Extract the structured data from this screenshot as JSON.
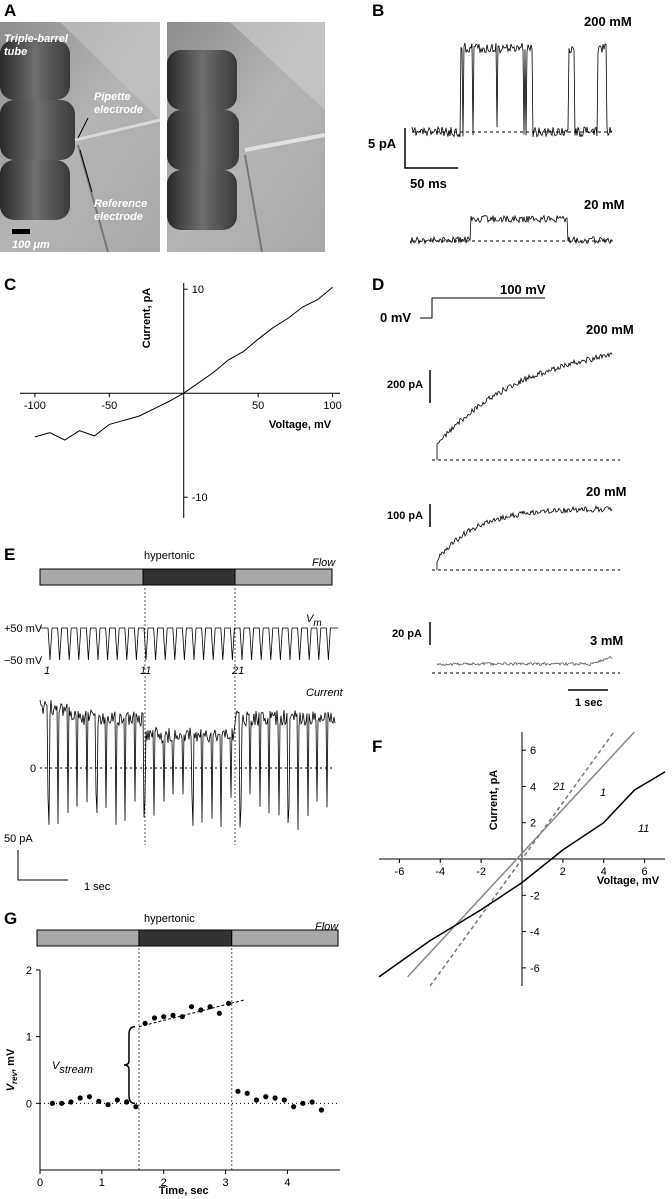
{
  "panels": {
    "labels": [
      "A",
      "B",
      "C",
      "D",
      "E",
      "F",
      "G"
    ],
    "A": {
      "tube": [
        "Triple-barrel",
        "tube"
      ],
      "pipette": [
        "Pipette",
        "electrode"
      ],
      "reference": [
        "Reference",
        "electrode"
      ],
      "scale": "100 μm"
    },
    "B": {
      "high": "200 mM",
      "low": "20 mM",
      "scale_y": "5 pA",
      "scale_x": "50 ms"
    },
    "D": {
      "step_low": "0 mV",
      "step_high": "100 mV",
      "traces": [
        {
          "conc": "200 mM",
          "scale": "200 pA"
        },
        {
          "conc": "20 mM",
          "scale": "100 pA"
        },
        {
          "conc": "3 mM",
          "scale": "20 pA"
        }
      ],
      "scale_x": "1 sec"
    },
    "E": {
      "title": "hypertonic",
      "flow": "Flow",
      "vm": "V",
      "vm_sub": "m",
      "vplus": "+50 mV",
      "vminus": "−50 mV",
      "pulses": [
        "1",
        "11",
        "21"
      ],
      "current": "Current",
      "zero": "0",
      "scale_y": "50 pA",
      "scale_x": "1 sec"
    }
  },
  "chart_data": [
    {
      "type": "line",
      "xlabel": "Voltage, mV",
      "ylabel": "Current, pA",
      "xlim": [
        -110,
        105
      ],
      "ylim": [
        -12,
        10.6
      ],
      "xticks": [
        -100,
        -50,
        50,
        100
      ],
      "yticks": [
        10,
        -10
      ],
      "x": [
        -100,
        -90,
        -80,
        -70,
        -60,
        -50,
        -40,
        -30,
        -20,
        -10,
        0,
        10,
        20,
        30,
        40,
        50,
        60,
        70,
        80,
        90,
        100
      ],
      "y": [
        -4.2,
        -3.8,
        -4.5,
        -3.6,
        -4.1,
        -3.0,
        -2.6,
        -2.2,
        -1.5,
        -0.8,
        0,
        1.0,
        2.0,
        3.2,
        4.0,
        5.2,
        6.3,
        7.2,
        8.3,
        9.0,
        10.2
      ],
      "color": "#000000"
    },
    {
      "type": "line",
      "xlabel": "Voltage, mV",
      "ylabel": "Current, pA",
      "xlim": [
        -7,
        7
      ],
      "ylim": [
        -7,
        7
      ],
      "xticks": [
        -6,
        -4,
        -2,
        2,
        4,
        6
      ],
      "yticks": [
        6,
        4,
        2,
        -2,
        -4,
        -6
      ],
      "series": [
        {
          "name": "21",
          "color": "#777777",
          "dash": true,
          "x": [
            -4.5,
            4.5
          ],
          "y": [
            -7,
            7
          ]
        },
        {
          "name": "1",
          "color": "#888888",
          "dash": false,
          "x": [
            -5.6,
            5.5
          ],
          "y": [
            -6.5,
            7
          ]
        },
        {
          "name": "11",
          "color": "#000000",
          "dash": false,
          "x": [
            -7,
            -4.5,
            -2,
            0,
            2,
            4,
            5.5,
            7
          ],
          "y": [
            -6.5,
            -4.5,
            -2.8,
            -1.3,
            0.5,
            2.0,
            3.8,
            4.8
          ]
        }
      ]
    },
    {
      "type": "scatter",
      "title": "hypertonic",
      "flow": "Flow",
      "xlabel": "Time, sec",
      "ylabel": [
        "V",
        "rev",
        ", mV"
      ],
      "annotation": [
        "V",
        "stream"
      ],
      "xlim": [
        0,
        4.85
      ],
      "ylim": [
        -1,
        2
      ],
      "xticks": [
        0,
        1,
        2,
        3,
        4
      ],
      "yticks": [
        0,
        1,
        2
      ],
      "stimulus": [
        1.6,
        3.1
      ],
      "x": [
        0.2,
        0.35,
        0.5,
        0.65,
        0.8,
        0.95,
        1.1,
        1.25,
        1.4,
        1.55,
        1.7,
        1.85,
        2.0,
        2.15,
        2.3,
        2.45,
        2.6,
        2.75,
        2.9,
        3.05,
        3.2,
        3.35,
        3.5,
        3.65,
        3.8,
        3.95,
        4.1,
        4.25,
        4.4,
        4.55
      ],
      "y": [
        0,
        0,
        0.02,
        0.08,
        0.1,
        0.03,
        -0.02,
        0.05,
        0.02,
        -0.05,
        1.2,
        1.28,
        1.3,
        1.32,
        1.3,
        1.45,
        1.4,
        1.45,
        1.35,
        1.5,
        0.18,
        0.15,
        0.05,
        0.1,
        0.08,
        0.05,
        -0.05,
        0,
        0.02,
        -0.1
      ],
      "fit": {
        "x": [
          1.6,
          3.3
        ],
        "y": [
          1.15,
          1.55
        ]
      },
      "color": "#000000"
    }
  ]
}
